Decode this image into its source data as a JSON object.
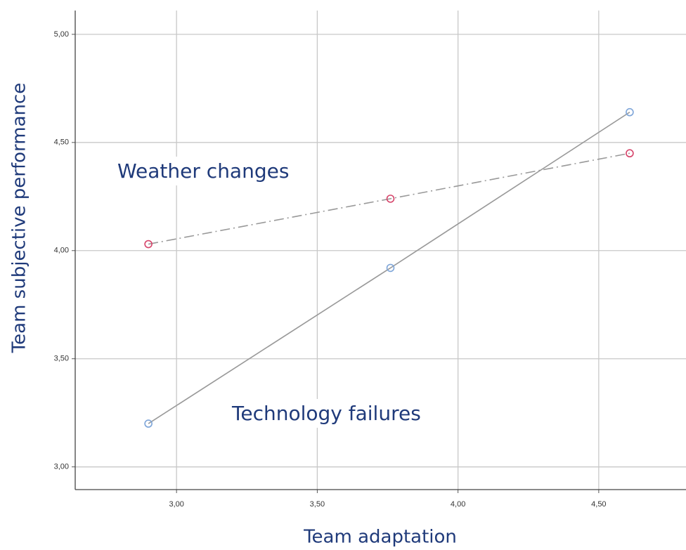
{
  "chart_data": {
    "type": "line",
    "xlabel": "Team adaptation",
    "ylabel": "Team subjective performance",
    "x": [
      2.9,
      3.76,
      4.61
    ],
    "series": [
      {
        "name": "Technology failures",
        "color": "#7fa6d9",
        "line_color": "#999999",
        "line_style": "solid",
        "values": [
          3.2,
          3.92,
          4.64
        ]
      },
      {
        "name": "Weather changes",
        "color": "#d6456b",
        "line_color": "#999999",
        "line_style": "dashdot",
        "values": [
          4.03,
          4.24,
          4.45
        ]
      }
    ],
    "xlim": [
      2.64,
      4.81
    ],
    "xticks": [
      {
        "value": 3.0,
        "label": "3,00"
      },
      {
        "value": 3.5,
        "label": "3,50"
      },
      {
        "value": 4.0,
        "label": "4,00"
      },
      {
        "value": 4.5,
        "label": "4,50"
      }
    ],
    "ylim": [
      2.895,
      5.11
    ],
    "yticks": [
      {
        "value": 3.0,
        "label": "3,00"
      },
      {
        "value": 3.5,
        "label": "3,50"
      },
      {
        "value": 4.0,
        "label": "4,00"
      },
      {
        "value": 4.5,
        "label": "4,50"
      },
      {
        "value": 5.0,
        "label": "5,00"
      }
    ],
    "grid": true
  }
}
